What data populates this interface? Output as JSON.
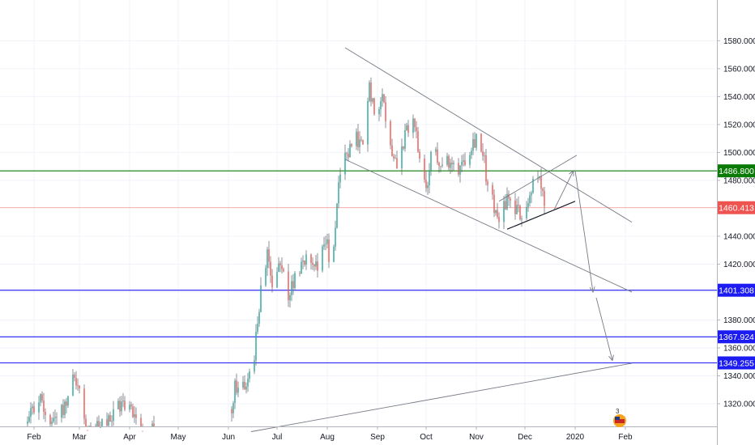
{
  "chart_data": {
    "type": "candlestick",
    "title": "",
    "xlabel": "",
    "ylabel": "",
    "y_axis_position": "right",
    "grid": true,
    "ylim": [
      1300,
      1590
    ],
    "x_ticks": [
      "Feb",
      "Mar",
      "Apr",
      "May",
      "Jun",
      "Jul",
      "Aug",
      "Sep",
      "Oct",
      "Nov",
      "Dec",
      "2020",
      "Feb"
    ],
    "y_ticks": [
      "1580.000",
      "1560.000",
      "1540.000",
      "1520.000",
      "1500.000",
      "1480.000",
      "1440.000",
      "1420.000",
      "1400.000",
      "1380.000",
      "1360.000",
      "1340.000",
      "1320.000"
    ],
    "colors": {
      "up": "#26a69a",
      "down": "#ef5350",
      "wick": "#5d606b",
      "green_level": "#0a7b07",
      "red_level": "#ef5350",
      "blue_level": "#1c1cf2",
      "trendline": "#787b86"
    },
    "price_levels": [
      {
        "label": "1486.800",
        "value": 1486.8,
        "style": "green"
      },
      {
        "label": "1460.413",
        "value": 1460.413,
        "style": "red"
      },
      {
        "label": "1401.308",
        "value": 1401.308,
        "style": "blue"
      },
      {
        "label": "1367.924",
        "value": 1367.924,
        "style": "blue"
      },
      {
        "label": "1349.255",
        "value": 1349.255,
        "style": "blue"
      }
    ],
    "price_path": [
      [
        "2019-01-28",
        1305
      ],
      [
        "2019-02-01",
        1318
      ],
      [
        "2019-02-04",
        1325
      ],
      [
        "2019-02-08",
        1313
      ],
      [
        "2019-02-12",
        1309
      ],
      [
        "2019-02-16",
        1314
      ],
      [
        "2019-02-21",
        1320
      ],
      [
        "2019-02-25",
        1346
      ],
      [
        "2019-03-01",
        1328
      ],
      [
        "2019-03-05",
        1304
      ],
      [
        "2019-03-11",
        1300
      ],
      [
        "2019-03-18",
        1305
      ],
      [
        "2019-03-25",
        1317
      ],
      [
        "2019-03-29",
        1321
      ],
      [
        "2019-04-03",
        1314
      ],
      [
        "2019-04-08",
        1303
      ],
      [
        "2019-04-12",
        1300
      ],
      [
        "2019-04-16",
        1304
      ],
      [
        "2019-05-31",
        1302
      ],
      [
        "2019-06-05",
        1330
      ],
      [
        "2019-06-10",
        1333
      ],
      [
        "2019-06-14",
        1342
      ],
      [
        "2019-06-17",
        1352
      ],
      [
        "2019-06-20",
        1392
      ],
      [
        "2019-06-25",
        1425
      ],
      [
        "2019-06-28",
        1406
      ],
      [
        "2019-07-03",
        1417
      ],
      [
        "2019-07-08",
        1398
      ],
      [
        "2019-07-12",
        1410
      ],
      [
        "2019-07-17",
        1425
      ],
      [
        "2019-07-22",
        1420
      ],
      [
        "2019-07-27",
        1422
      ],
      [
        "2019-08-01",
        1438
      ],
      [
        "2019-08-03",
        1405
      ],
      [
        "2019-08-07",
        1466
      ],
      [
        "2019-08-12",
        1495
      ],
      [
        "2019-08-16",
        1502
      ],
      [
        "2019-08-20",
        1510
      ],
      [
        "2019-08-24",
        1500
      ],
      [
        "2019-08-27",
        1548
      ],
      [
        "2019-08-31",
        1525
      ],
      [
        "2019-09-04",
        1548
      ],
      [
        "2019-09-08",
        1505
      ],
      [
        "2019-09-13",
        1495
      ],
      [
        "2019-09-18",
        1510
      ],
      [
        "2019-09-23",
        1525
      ],
      [
        "2019-09-27",
        1495
      ],
      [
        "2019-10-01",
        1470
      ],
      [
        "2019-10-05",
        1502
      ],
      [
        "2019-10-10",
        1495
      ],
      [
        "2019-10-15",
        1490
      ],
      [
        "2019-10-20",
        1488
      ],
      [
        "2019-10-24",
        1495
      ],
      [
        "2019-10-28",
        1505
      ],
      [
        "2019-11-01",
        1512
      ],
      [
        "2019-11-05",
        1500
      ],
      [
        "2019-11-09",
        1470
      ],
      [
        "2019-11-13",
        1458
      ],
      [
        "2019-11-16",
        1453
      ],
      [
        "2019-11-20",
        1468
      ],
      [
        "2019-11-24",
        1460
      ],
      [
        "2019-11-28",
        1455
      ],
      [
        "2019-12-02",
        1463
      ],
      [
        "2019-12-06",
        1478
      ],
      [
        "2019-12-10",
        1480
      ],
      [
        "2019-12-13",
        1462
      ]
    ],
    "drawings": {
      "trendlines": [
        [
          [
            "2019-08-12",
            1575
          ],
          [
            "2020-02-05",
            1450
          ]
        ],
        [
          [
            "2019-08-12",
            1495
          ],
          [
            "2020-02-05",
            1400
          ]
        ],
        [
          [
            "2019-11-15",
            1465
          ],
          [
            "2020-01-02",
            1498
          ]
        ],
        [
          [
            "2019-11-20",
            1445
          ],
          [
            "2020-01-01",
            1465
          ]
        ],
        [
          [
            "2019-06-15",
            1300
          ],
          [
            "2020-02-05",
            1349
          ]
        ]
      ],
      "arrows": [
        [
          [
            "2019-12-19",
            1459
          ],
          [
            "2019-12-31",
            1487
          ]
        ],
        [
          [
            "2020-01-01",
            1487
          ],
          [
            "2020-01-12",
            1400
          ]
        ],
        [
          [
            "2020-01-14",
            1396
          ],
          [
            "2020-01-24",
            1351
          ]
        ]
      ]
    }
  }
}
